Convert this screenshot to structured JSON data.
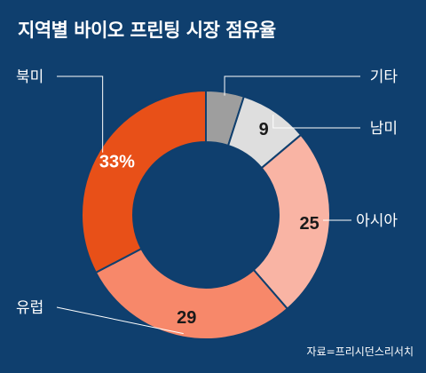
{
  "title": "지역별 바이오 프린팅 시장 점유율",
  "source": "자료=프리시던스리서치",
  "chart_data": {
    "type": "pie",
    "donut": true,
    "slices": [
      {
        "label": "기타",
        "value": 5,
        "display": "",
        "color": "#9e9e9e",
        "text_color": "#1a1a1a"
      },
      {
        "label": "남미",
        "value": 9,
        "display": "9",
        "color": "#dedede",
        "text_color": "#1a1a1a"
      },
      {
        "label": "아시아",
        "value": 25,
        "display": "25",
        "color": "#f9b4a4",
        "text_color": "#1a1a1a"
      },
      {
        "label": "유럽",
        "value": 29,
        "display": "29",
        "color": "#f7886a",
        "text_color": "#1a1a1a"
      },
      {
        "label": "북미",
        "value": 33,
        "display": "33%",
        "color": "#e85018",
        "text_color": "#ffffff"
      }
    ]
  }
}
